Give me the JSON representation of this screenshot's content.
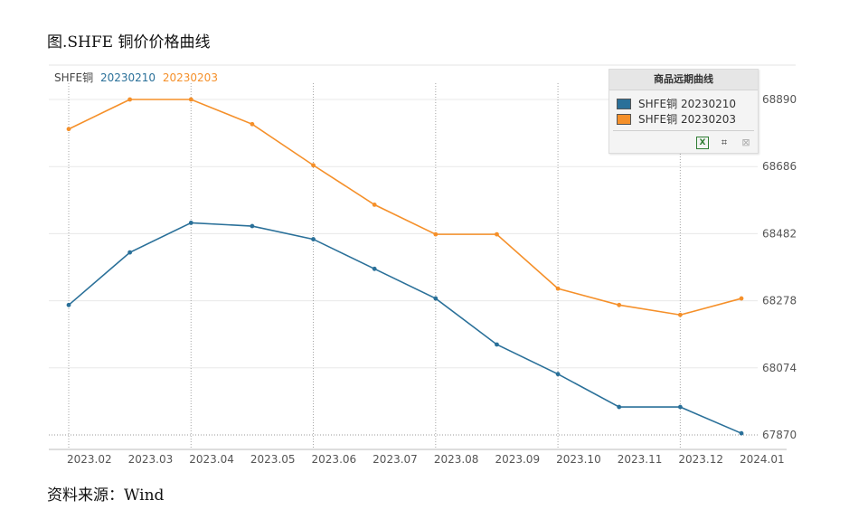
{
  "figure_title": "图.SHFE 铜价价格曲线",
  "source": "资料来源：Wind",
  "top_legend": {
    "prefix": "SHFE铜",
    "series_a": "20230210",
    "series_b": "20230203"
  },
  "panel": {
    "title": "商品远期曲线",
    "items": [
      {
        "label": "SHFE铜 20230210",
        "color": "#2a7099"
      },
      {
        "label": "SHFE铜 20230203",
        "color": "#f5902a"
      }
    ],
    "icons": [
      "excel-export-icon",
      "crop-icon",
      "grid-icon"
    ]
  },
  "chart_data": {
    "type": "line",
    "categories": [
      "2023.02",
      "2023.03",
      "2023.04",
      "2023.05",
      "2023.06",
      "2023.07",
      "2023.08",
      "2023.09",
      "2023.10",
      "2023.11",
      "2023.12",
      "2024.01"
    ],
    "y_ticks": [
      68890,
      68686,
      68482,
      68278,
      68074,
      67870
    ],
    "ylim": [
      67845,
      68890
    ],
    "series": [
      {
        "name": "SHFE铜 20230210",
        "color": "#2a7099",
        "values": [
          68265,
          68425,
          68515,
          68505,
          68465,
          68375,
          68285,
          68145,
          68055,
          67955,
          67955,
          67875
        ]
      },
      {
        "name": "SHFE铜 20230203",
        "color": "#f5902a",
        "values": [
          68800,
          68890,
          68890,
          68815,
          68690,
          68570,
          68480,
          68480,
          68315,
          68265,
          68235,
          68285
        ]
      }
    ],
    "grid": true,
    "legend": "top-right"
  }
}
